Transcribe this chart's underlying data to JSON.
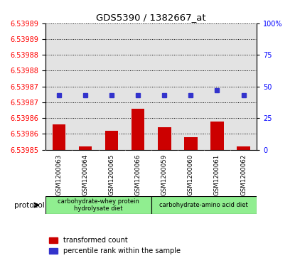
{
  "title": "GDS5390 / 1382667_at",
  "samples": [
    "GSM1200063",
    "GSM1200064",
    "GSM1200065",
    "GSM1200066",
    "GSM1200059",
    "GSM1200060",
    "GSM1200061",
    "GSM1200062"
  ],
  "red_values": [
    6.539858,
    6.539851,
    6.539856,
    6.539863,
    6.539857,
    6.539854,
    6.539859,
    6.539851
  ],
  "percentile_values": [
    43,
    43,
    43,
    43,
    43,
    43,
    47,
    43
  ],
  "ymin": 6.53985,
  "ymax": 6.53989,
  "left_yticks": [
    6.53985,
    6.53986,
    6.53986,
    6.53987,
    6.53988
  ],
  "right_yticks": [
    0,
    25,
    50,
    75,
    100
  ],
  "right_ytick_labels": [
    "0",
    "25",
    "50",
    "75",
    "100%"
  ],
  "group1_label": "carbohydrate-whey protein\nhydrolysate diet",
  "group2_label": "carbohydrate-amino acid diet",
  "group_color": "#90EE90",
  "protocol_text": "protocol",
  "legend_red": "transformed count",
  "legend_blue": "percentile rank within the sample",
  "bar_color": "#CC0000",
  "blue_color": "#3333CC",
  "col_bg_color": "#C8C8C8",
  "plot_bg": "#FFFFFF"
}
